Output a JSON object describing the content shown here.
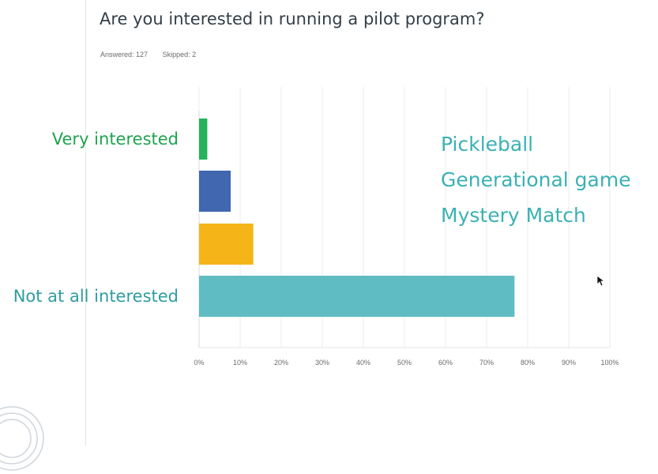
{
  "survey": {
    "question": "Are you interested in running a pilot program?",
    "answered": "Answered: 127",
    "skipped": "Skipped: 2"
  },
  "overlay_lines": [
    "Pickleball",
    "Generational game",
    "Mystery Match"
  ],
  "chart_data": {
    "type": "bar",
    "orientation": "horizontal",
    "categories": [
      "Very interested",
      "",
      "",
      "Not at all interested"
    ],
    "values": [
      2.0,
      7.7,
      13.2,
      76.8
    ],
    "unit": "%",
    "xlim": [
      0,
      100
    ],
    "xticks": [
      "0%",
      "10%",
      "20%",
      "30%",
      "40%",
      "50%",
      "60%",
      "70%",
      "80%",
      "90%",
      "100%"
    ],
    "grid": true,
    "colors": [
      "#25b35c",
      "#4067b0",
      "#f5b417",
      "#5fbcc2"
    ],
    "label_colors": [
      "#1ea44f",
      "",
      "",
      "#2f9ca2"
    ]
  }
}
